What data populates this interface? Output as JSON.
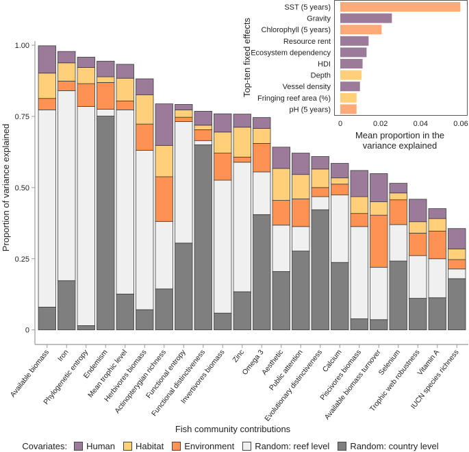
{
  "chart_data": [
    {
      "type": "bar",
      "stacked": true,
      "xlabel": "Fish community contributions",
      "ylabel": "Proportion of variance explained",
      "ylim": [
        0,
        1.0
      ],
      "yticks": [
        "0",
        "0.25",
        "0.50",
        "0.75",
        "1.00"
      ],
      "ytick_values": [
        0,
        0.25,
        0.5,
        0.75,
        1.0
      ],
      "grid": false,
      "legend": {
        "title": "Covariates:",
        "placement": "bottom"
      },
      "categories": [
        "Available biomass",
        "Iron",
        "Phylogenetic entropy",
        "Endemism",
        "Mean trophic level",
        "Herbivores biomass",
        "Actinopterygian richness",
        "Functional entropy",
        "Functional distinctiveness",
        "Invertivores biomass",
        "Zinc",
        "Omega 3",
        "Aesthetic",
        "Public attention",
        "Evolutionary distinctiveness",
        "Calcium",
        "Piscivores biomass",
        "Available biomass turnover",
        "Selenium",
        "Trophic web robustness",
        "Vitamin A",
        "IUCN species richness"
      ],
      "series": [
        {
          "name": "Random: country level",
          "color": "#7f7f7f",
          "values": [
            0.08,
            0.173,
            0.015,
            0.751,
            0.126,
            0.071,
            0.144,
            0.305,
            0.65,
            0.059,
            0.134,
            0.405,
            0.205,
            0.277,
            0.422,
            0.237,
            0.039,
            0.036,
            0.242,
            0.111,
            0.113,
            0.18
          ]
        },
        {
          "name": "Random: reef level",
          "color": "#f0f0f0",
          "values": [
            0.693,
            0.667,
            0.77,
            0.024,
            0.647,
            0.56,
            0.237,
            0.427,
            0.015,
            0.467,
            0.455,
            0.15,
            0.163,
            0.086,
            0.046,
            0.237,
            0.324,
            0.184,
            0.128,
            0.15,
            0.137,
            0.034
          ]
        },
        {
          "name": "Environment",
          "color": "#fe9253",
          "values": [
            0.04,
            0.034,
            0.08,
            0.094,
            0.031,
            0.092,
            0.157,
            0.015,
            0.038,
            0.095,
            0.018,
            0.1,
            0.087,
            0.097,
            0.032,
            0.038,
            0.046,
            0.183,
            0.087,
            0.079,
            0.097,
            0.033
          ]
        },
        {
          "name": "Habitat",
          "color": "#ffcf79",
          "values": [
            0.089,
            0.064,
            0.057,
            0.02,
            0.08,
            0.103,
            0.11,
            0.026,
            0.016,
            0.074,
            0.105,
            0.053,
            0.112,
            0.086,
            0.065,
            0.022,
            0.059,
            0.047,
            0.024,
            0.04,
            0.044,
            0.037
          ]
        },
        {
          "name": "Human",
          "color": "#9b7a9a",
          "values": [
            0.096,
            0.04,
            0.036,
            0.055,
            0.049,
            0.056,
            0.146,
            0.019,
            0.049,
            0.064,
            0.046,
            0.038,
            0.075,
            0.075,
            0.044,
            0.051,
            0.092,
            0.099,
            0.034,
            0.079,
            0.035,
            0.072
          ]
        }
      ]
    },
    {
      "type": "bar",
      "orientation": "horizontal",
      "xlabel": "Mean proportion in the variance explained",
      "xlabel_lines": [
        "Mean proportion in the",
        "variance explained"
      ],
      "ylabel": "Top-ten fixed effects",
      "xlim": [
        0,
        0.06
      ],
      "xticks": [
        "0",
        "0.02",
        "0.04",
        "0.06"
      ],
      "xtick_values": [
        0,
        0.02,
        0.04,
        0.06
      ],
      "categories": [
        "SST (5 years)",
        "Gravity",
        "Chlorophyll (5 years)",
        "Resource rent",
        "Ecosystem dependency",
        "HDI",
        "Depth",
        "Vessel density",
        "Fringing reef area (%)",
        "pH (5 years)"
      ],
      "values": [
        0.0598,
        0.0257,
        0.0206,
        0.0141,
        0.0131,
        0.0111,
        0.0106,
        0.0098,
        0.0081,
        0.0081
      ],
      "groups": [
        "Environment",
        "Human",
        "Environment",
        "Human",
        "Human",
        "Human",
        "Habitat",
        "Human",
        "Habitat",
        "Environment"
      ],
      "colors": {
        "Environment": "#ffaa78",
        "Human": "#9b7a9a",
        "Habitat": "#ffcf79"
      }
    }
  ]
}
